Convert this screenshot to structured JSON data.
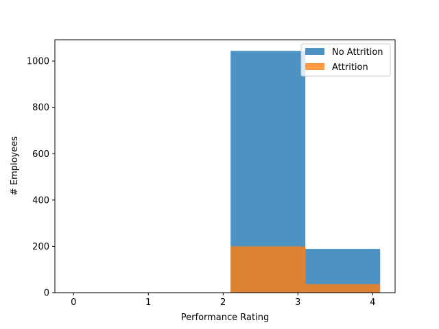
{
  "chart_data": {
    "type": "bar",
    "xlabel": "Performance Rating",
    "ylabel": "# Employees",
    "xlim": [
      -0.25,
      4.3
    ],
    "ylim": [
      0,
      1092
    ],
    "xticks": [
      0,
      1,
      2,
      3,
      4
    ],
    "yticks": [
      0,
      200,
      400,
      600,
      800,
      1000
    ],
    "bin_edges": [
      [
        2.1,
        3.1
      ],
      [
        3.1,
        4.1
      ]
    ],
    "grid": false,
    "legend_position": "top-right",
    "series": [
      {
        "name": "No Attrition",
        "color": "#1f77b4",
        "opacity": 0.8,
        "values": [
          1044,
          189
        ]
      },
      {
        "name": "Attrition",
        "color": "#ff7f0e",
        "opacity": 0.8,
        "values": [
          200,
          37
        ]
      }
    ]
  }
}
